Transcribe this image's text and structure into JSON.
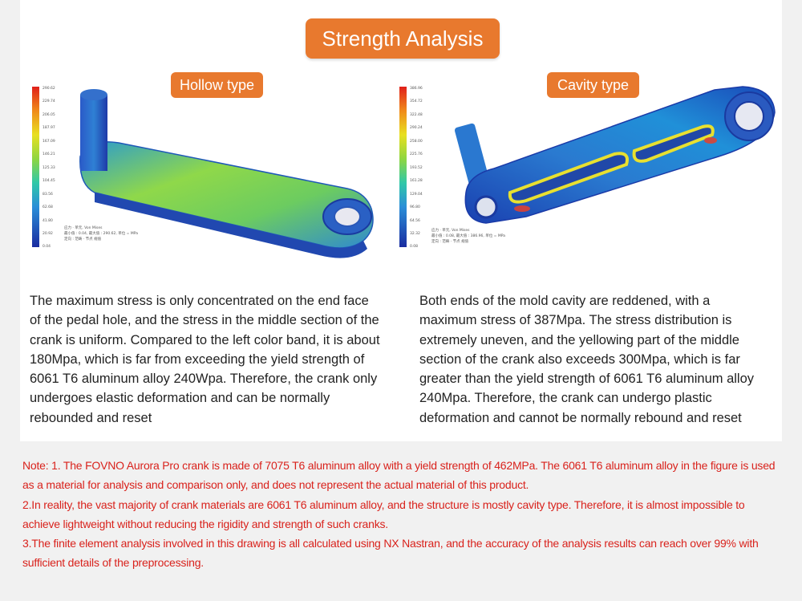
{
  "title": "Strength Analysis",
  "left": {
    "badge": "Hollow type",
    "colorbar_ticks": [
      "290.62",
      "229.74",
      "206.05",
      "187.97",
      "167.09",
      "146.21",
      "125.33",
      "104.45",
      "83.56",
      "62.68",
      "41.80",
      "20.92",
      "0.04"
    ],
    "legend_note": [
      "应力 · 单元, Von Mises",
      "最小值 : 0.04, 最大值 : 290.62, 单位 = MPa",
      "定向 : 范畴 · 节点 规值"
    ],
    "description": "The maximum stress is only concentrated on the end face of the pedal hole, and the stress in the middle section of the crank is uniform. Compared to the left color band, it is about 180Mpa, which is far from exceeding the yield strength of 6061 T6 aluminum alloy 240Wpa. Therefore, the crank only undergoes elastic deformation and can be normally rebounded and reset"
  },
  "right": {
    "badge": "Cavity type",
    "colorbar_ticks": [
      "386.96",
      "354.72",
      "322.48",
      "290.24",
      "258.00",
      "225.76",
      "193.52",
      "161.28",
      "129.04",
      "96.80",
      "64.56",
      "32.32",
      "0.08"
    ],
    "legend_note": [
      "应力 · 单元, Von Mises",
      "最小值 : 0.08, 最大值 : 386.96, 单位 = MPa",
      "定向 : 范畴 · 节点 规值"
    ],
    "description": "Both ends of the mold cavity are reddened, with a maximum stress of 387Mpa. The stress distribution is extremely uneven, and the yellowing part of the middle section of the crank also exceeds 300Mpa, which is far greater than the yield strength of 6061 T6 aluminum alloy 240Mpa. Therefore, the crank can undergo plastic deformation and cannot be normally rebound and reset"
  },
  "notes": [
    "Note: 1. The FOVNO Aurora Pro crank is made of 7075 T6 aluminum alloy with a yield strength of 462MPa. The 6061 T6 aluminum alloy in the figure is used as a material for analysis and comparison only, and does not represent the actual material of this product.",
    "2.In reality, the vast majority of crank materials are 6061 T6 aluminum alloy, and the structure is mostly cavity type. Therefore, it is almost impossible to achieve lightweight without reducing the rigidity and strength of such cranks.",
    "3.The finite element analysis involved in this drawing is all calculated using NX Nastran, and the accuracy of the analysis results can reach over 99% with sufficient details of the preprocessing."
  ],
  "colors": {
    "accent": "#e8792e",
    "note_text": "#d9221c"
  }
}
